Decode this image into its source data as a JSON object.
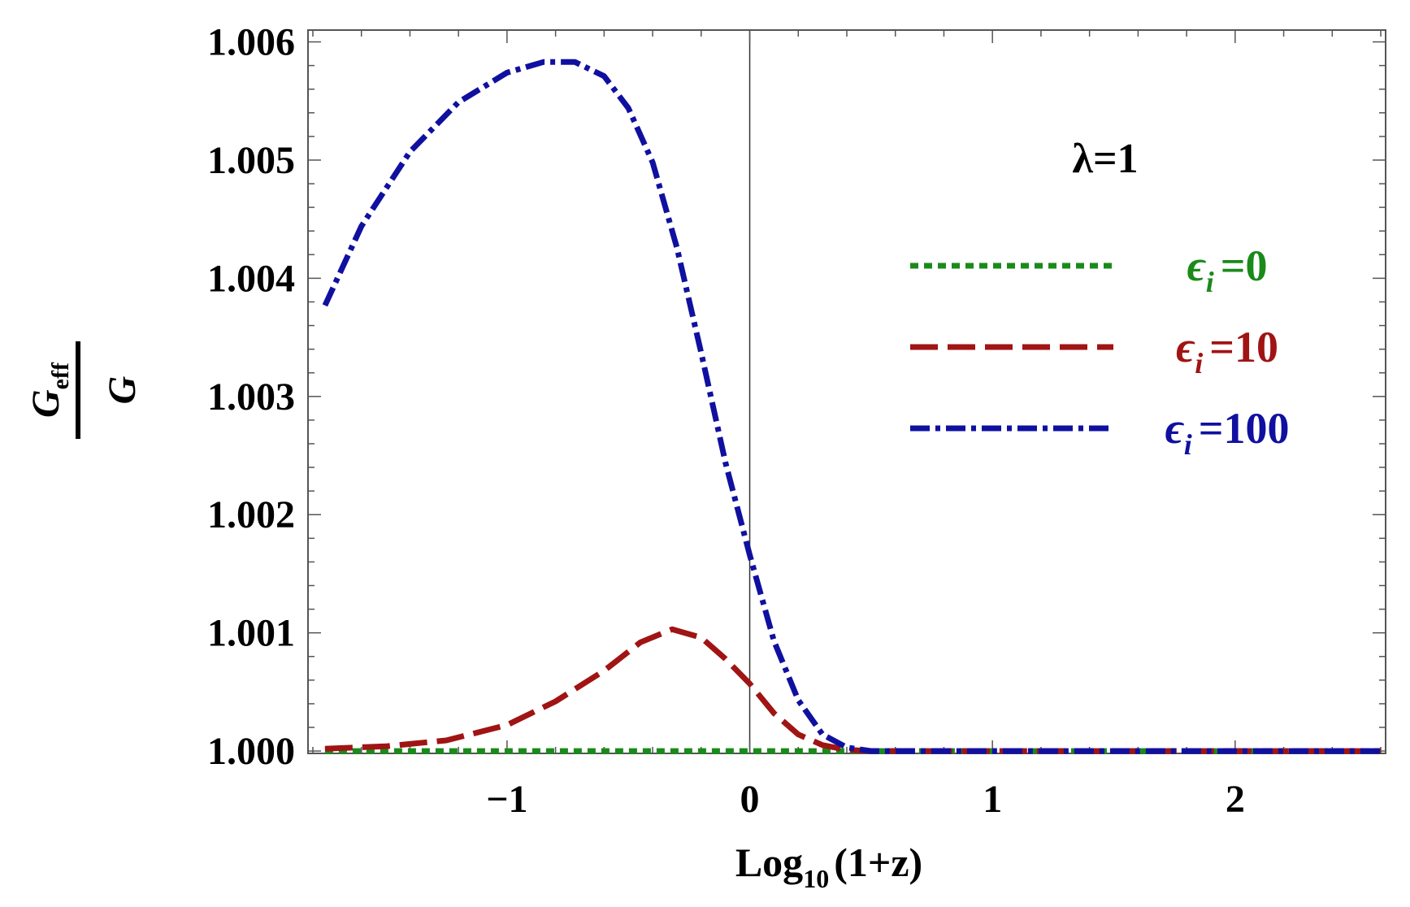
{
  "chart_data": {
    "type": "line",
    "xlabel": {
      "base": "Log",
      "sub": "10",
      "rest": "(1+z)"
    },
    "ylabel": {
      "num": "G",
      "num_sub": "eff",
      "den": "G"
    },
    "annotation": "λ=1",
    "xlim": [
      -1.82,
      2.62
    ],
    "ylim": [
      0.99998,
      1.0061
    ],
    "x_ticks": [
      -1,
      0,
      1,
      2
    ],
    "x_tick_labels": [
      "−1",
      "0",
      "1",
      "2"
    ],
    "y_ticks": [
      1.0,
      1.001,
      1.002,
      1.003,
      1.004,
      1.005,
      1.006
    ],
    "y_tick_labels": [
      "1.000",
      "1.001",
      "1.002",
      "1.003",
      "1.004",
      "1.005",
      "1.006"
    ],
    "grid": false,
    "legend_position": "right",
    "series": [
      {
        "name": "ϵi=0",
        "label_main": "ϵ",
        "label_sub": "i",
        "label_rest": "=0",
        "color": "#1a8a1a",
        "dash": "10,7",
        "x": [
          -1.75,
          -1.0,
          0.0,
          1.0,
          2.0,
          2.6
        ],
        "y": [
          1.0,
          1.0,
          1.0,
          1.0,
          1.0,
          1.0
        ]
      },
      {
        "name": "ϵi=10",
        "label_main": "ϵ",
        "label_sub": "i",
        "label_rest": "=10",
        "color": "#a01414",
        "dash": "34,12",
        "x": [
          -1.75,
          -1.5,
          -1.25,
          -1.0,
          -0.8,
          -0.6,
          -0.45,
          -0.32,
          -0.2,
          -0.1,
          0.0,
          0.1,
          0.2,
          0.3,
          0.4,
          0.5,
          0.7,
          1.0,
          1.5,
          2.0,
          2.6
        ],
        "y": [
          1.00002,
          1.00004,
          1.00009,
          1.00022,
          1.00042,
          1.00068,
          1.00092,
          1.00103,
          1.00096,
          1.00078,
          1.00057,
          1.00032,
          1.00014,
          1.00005,
          1.00001,
          1.0,
          1.0,
          1.0,
          1.0,
          1.0,
          1.0
        ]
      },
      {
        "name": "ϵi=100",
        "label_main": "ϵ",
        "label_sub": "i",
        "label_rest": "=100",
        "color": "#1010a0",
        "dash": "24,7,6,7",
        "x": [
          -1.75,
          -1.6,
          -1.4,
          -1.2,
          -1.0,
          -0.85,
          -0.72,
          -0.6,
          -0.5,
          -0.4,
          -0.3,
          -0.2,
          -0.1,
          0.0,
          0.1,
          0.2,
          0.3,
          0.4,
          0.5,
          0.7,
          1.0,
          1.5,
          2.0,
          2.6
        ],
        "y": [
          1.00377,
          1.00444,
          1.00507,
          1.00549,
          1.00574,
          1.00583,
          1.00583,
          1.00571,
          1.00544,
          1.00498,
          1.00426,
          1.00337,
          1.00244,
          1.00166,
          1.00093,
          1.00043,
          1.00014,
          1.00003,
          1.0,
          1.0,
          1.0,
          1.0,
          1.0,
          1.0
        ]
      }
    ]
  }
}
